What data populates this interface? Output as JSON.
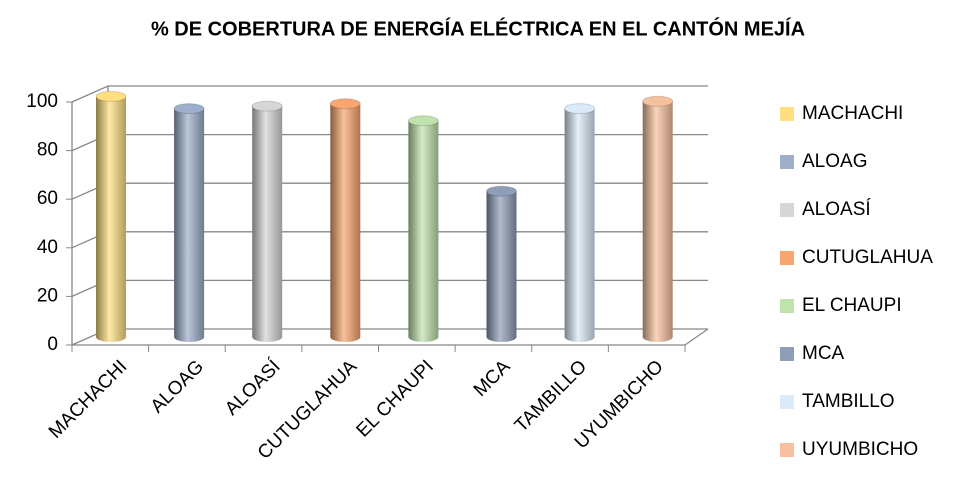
{
  "chart_data": {
    "type": "bar3d",
    "title": "% DE COBERTURA DE ENERGÍA ELÉCTRICA EN EL CANTÓN MEJÍA",
    "categories": [
      "MACHACHI",
      "ALOAG",
      "ALOASÍ",
      "CUTUGLAHUA",
      "EL CHAUPI",
      "MCA",
      "TAMBILLO",
      "UYUMBICHO"
    ],
    "values": [
      99,
      94,
      95,
      96,
      89,
      60,
      94,
      97
    ],
    "colors": [
      "#FFDF80",
      "#9DAFCA",
      "#D6D6D6",
      "#F7A670",
      "#C0E2AC",
      "#8E9EB8",
      "#DAEAF8",
      "#F8C19E"
    ],
    "ylim": [
      0,
      100
    ],
    "yticks": [
      0,
      20,
      40,
      60,
      80,
      100
    ],
    "grid": true,
    "legend": "right"
  }
}
